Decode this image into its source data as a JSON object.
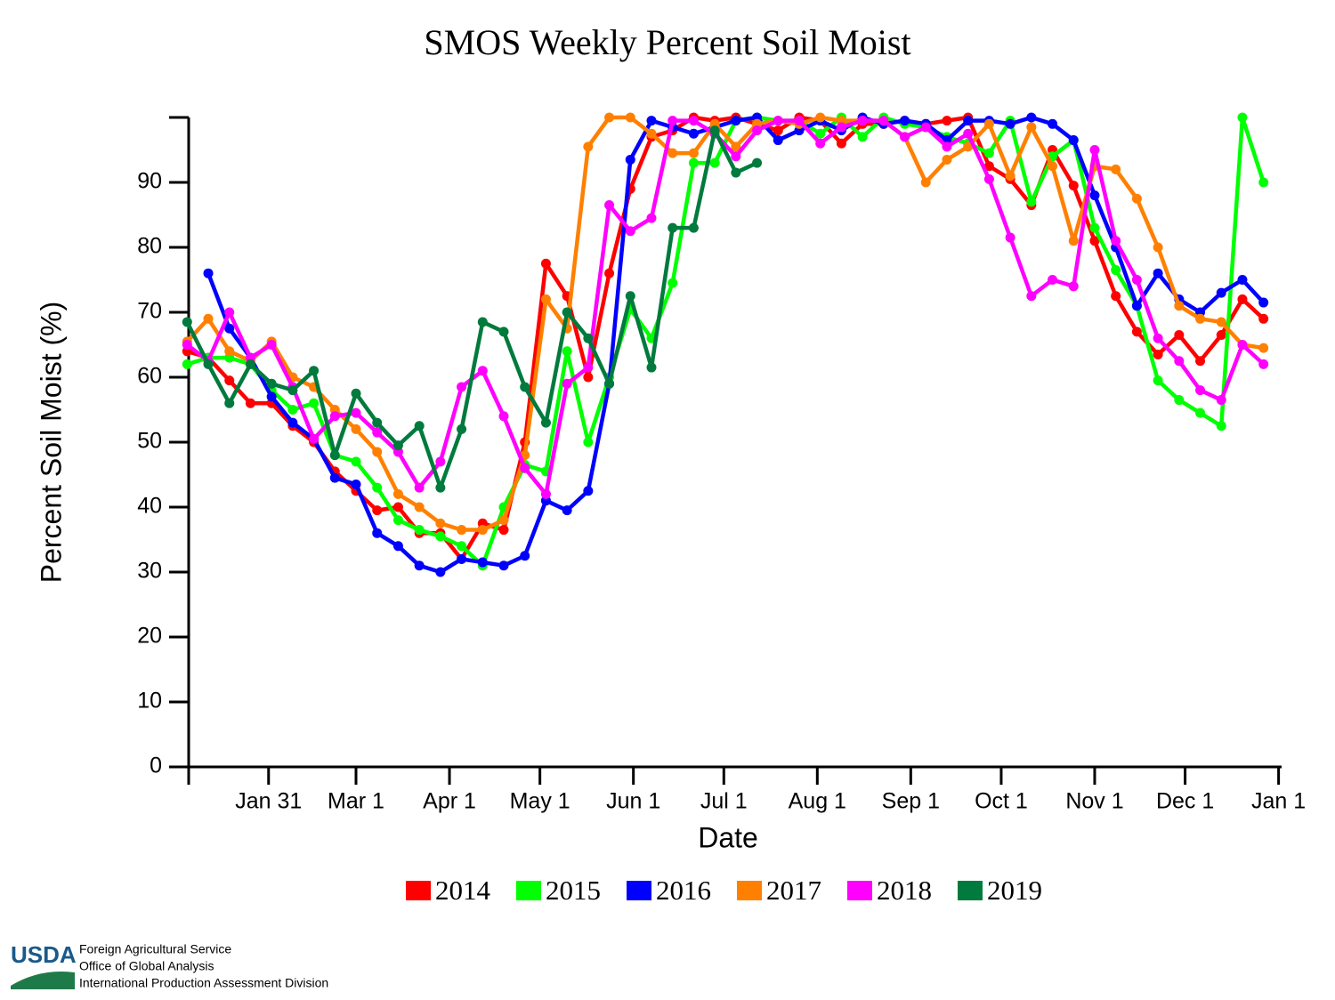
{
  "chart_data": {
    "type": "line",
    "title": "SMOS Weekly Percent Soil Moist",
    "x_label": "Date",
    "y_label": "Percent Soil Moist (%)",
    "x": [
      4,
      11,
      18,
      25,
      32,
      39,
      46,
      53,
      60,
      67,
      74,
      81,
      88,
      95,
      102,
      109,
      116,
      123,
      130,
      137,
      144,
      151,
      158,
      165,
      172,
      179,
      186,
      193,
      200,
      207,
      214,
      221,
      228,
      235,
      242,
      249,
      256,
      263,
      270,
      277,
      284,
      291,
      298,
      305,
      312,
      319,
      326,
      333,
      340,
      347,
      354,
      361
    ],
    "xlim": [
      4.5,
      367
    ],
    "xticks": [
      {
        "value": 31,
        "label": "Jan 31"
      },
      {
        "value": 60,
        "label": "Mar 1"
      },
      {
        "value": 91,
        "label": "Apr 1"
      },
      {
        "value": 121,
        "label": "May 1"
      },
      {
        "value": 152,
        "label": "Jun 1"
      },
      {
        "value": 182,
        "label": "Jul 1"
      },
      {
        "value": 213,
        "label": "Aug 1"
      },
      {
        "value": 244,
        "label": "Sep 1"
      },
      {
        "value": 274,
        "label": "Oct 1"
      },
      {
        "value": 305,
        "label": "Nov 1"
      },
      {
        "value": 335,
        "label": "Dec 1"
      },
      {
        "value": 366,
        "label": "Jan 1"
      }
    ],
    "ylim": [
      0,
      100
    ],
    "yticks": [
      0,
      10,
      20,
      30,
      40,
      50,
      60,
      70,
      80,
      90
    ],
    "series": [
      {
        "name": "2014",
        "color": "#ff0000",
        "values": [
          64,
          63,
          59.5,
          56,
          56,
          52.5,
          50,
          45.5,
          42.5,
          39.5,
          40,
          36,
          36,
          32,
          37.5,
          36.5,
          50,
          77.5,
          72.5,
          60,
          76,
          89,
          97,
          98,
          100,
          99.5,
          100,
          99,
          98,
          100,
          99.5,
          96,
          99,
          99,
          99.5,
          99,
          99.5,
          100,
          92.5,
          90.5,
          86.5,
          95,
          89.5,
          81,
          72.5,
          67,
          63.5,
          66.5,
          62.5,
          66.5,
          72,
          69
        ]
      },
      {
        "name": "2015",
        "color": "#00ff00",
        "values": [
          62,
          63,
          63,
          62,
          58,
          55,
          56,
          48,
          47,
          43,
          38,
          36.5,
          35.5,
          34,
          31,
          40,
          46.5,
          45.5,
          64,
          50,
          60,
          70.5,
          66,
          74.5,
          93,
          93,
          99.5,
          100,
          99.5,
          99.5,
          97.5,
          100,
          97,
          100,
          99,
          98.5,
          97,
          96,
          94.5,
          99.5,
          87,
          94,
          96.5,
          83,
          76.5,
          71,
          59.5,
          56.5,
          54.5,
          52.5,
          100,
          90
        ]
      },
      {
        "name": "2016",
        "color": "#0000ff",
        "values": [
          null,
          76,
          67.5,
          63,
          57,
          53,
          50.5,
          44.5,
          43.5,
          36,
          34,
          31,
          30,
          32,
          31.5,
          31,
          32.5,
          41,
          39.5,
          42.5,
          59,
          93.5,
          99.5,
          98.5,
          97.5,
          98.5,
          99.5,
          100,
          96.5,
          98,
          99.5,
          98,
          100,
          99,
          99.5,
          99,
          96.5,
          99.5,
          99.5,
          99,
          100,
          99,
          96.5,
          88,
          80,
          71,
          76,
          72,
          70,
          73,
          75,
          71.5
        ]
      },
      {
        "name": "2017",
        "color": "#ff8000",
        "values": [
          65.5,
          69,
          64,
          62.5,
          65.5,
          60,
          58.5,
          55,
          52,
          48.5,
          42,
          40,
          37.5,
          36.5,
          36.5,
          38,
          48,
          72,
          67.5,
          95.5,
          100,
          100,
          97.5,
          94.5,
          94.5,
          99,
          95.5,
          99,
          99.5,
          99,
          100,
          99.5,
          99.5,
          99.5,
          97,
          90,
          93.5,
          95.5,
          99,
          91,
          98.5,
          92.5,
          81,
          92.5,
          92,
          87.5,
          80,
          71,
          69,
          68.5,
          65,
          64.5
        ]
      },
      {
        "name": "2018",
        "color": "#ff00ff",
        "values": [
          65,
          62.5,
          70,
          63,
          65,
          58.5,
          50.5,
          54,
          54.5,
          51.5,
          48.5,
          43,
          47,
          58.5,
          61,
          54,
          46,
          42,
          59,
          61.5,
          86.5,
          82.5,
          84.5,
          99.5,
          99.5,
          97.5,
          94,
          98,
          99.5,
          99.5,
          96,
          98.5,
          99.5,
          99.5,
          97,
          98.5,
          95.5,
          97.5,
          90.5,
          81.5,
          72.5,
          75,
          74,
          95,
          81,
          75,
          66,
          62.5,
          58,
          56.5,
          65,
          62
        ]
      },
      {
        "name": "2019",
        "color": "#007a3d",
        "values": [
          68.5,
          62,
          56,
          62,
          59,
          58,
          61,
          48,
          57.5,
          53,
          49.5,
          52.5,
          43,
          52,
          68.5,
          67,
          58.5,
          53,
          70,
          66,
          59,
          72.5,
          61.5,
          83,
          83,
          98,
          91.5,
          93,
          null,
          null,
          null,
          null,
          null,
          null,
          null,
          null,
          null,
          null,
          null,
          null,
          null,
          null,
          null,
          null,
          null,
          null,
          null,
          null,
          null,
          null,
          null,
          null
        ]
      }
    ]
  },
  "footer": {
    "logo": "USDA",
    "lines": [
      "Foreign Agricultural Service",
      "Office of Global Analysis",
      "International Production Assessment Division"
    ]
  }
}
